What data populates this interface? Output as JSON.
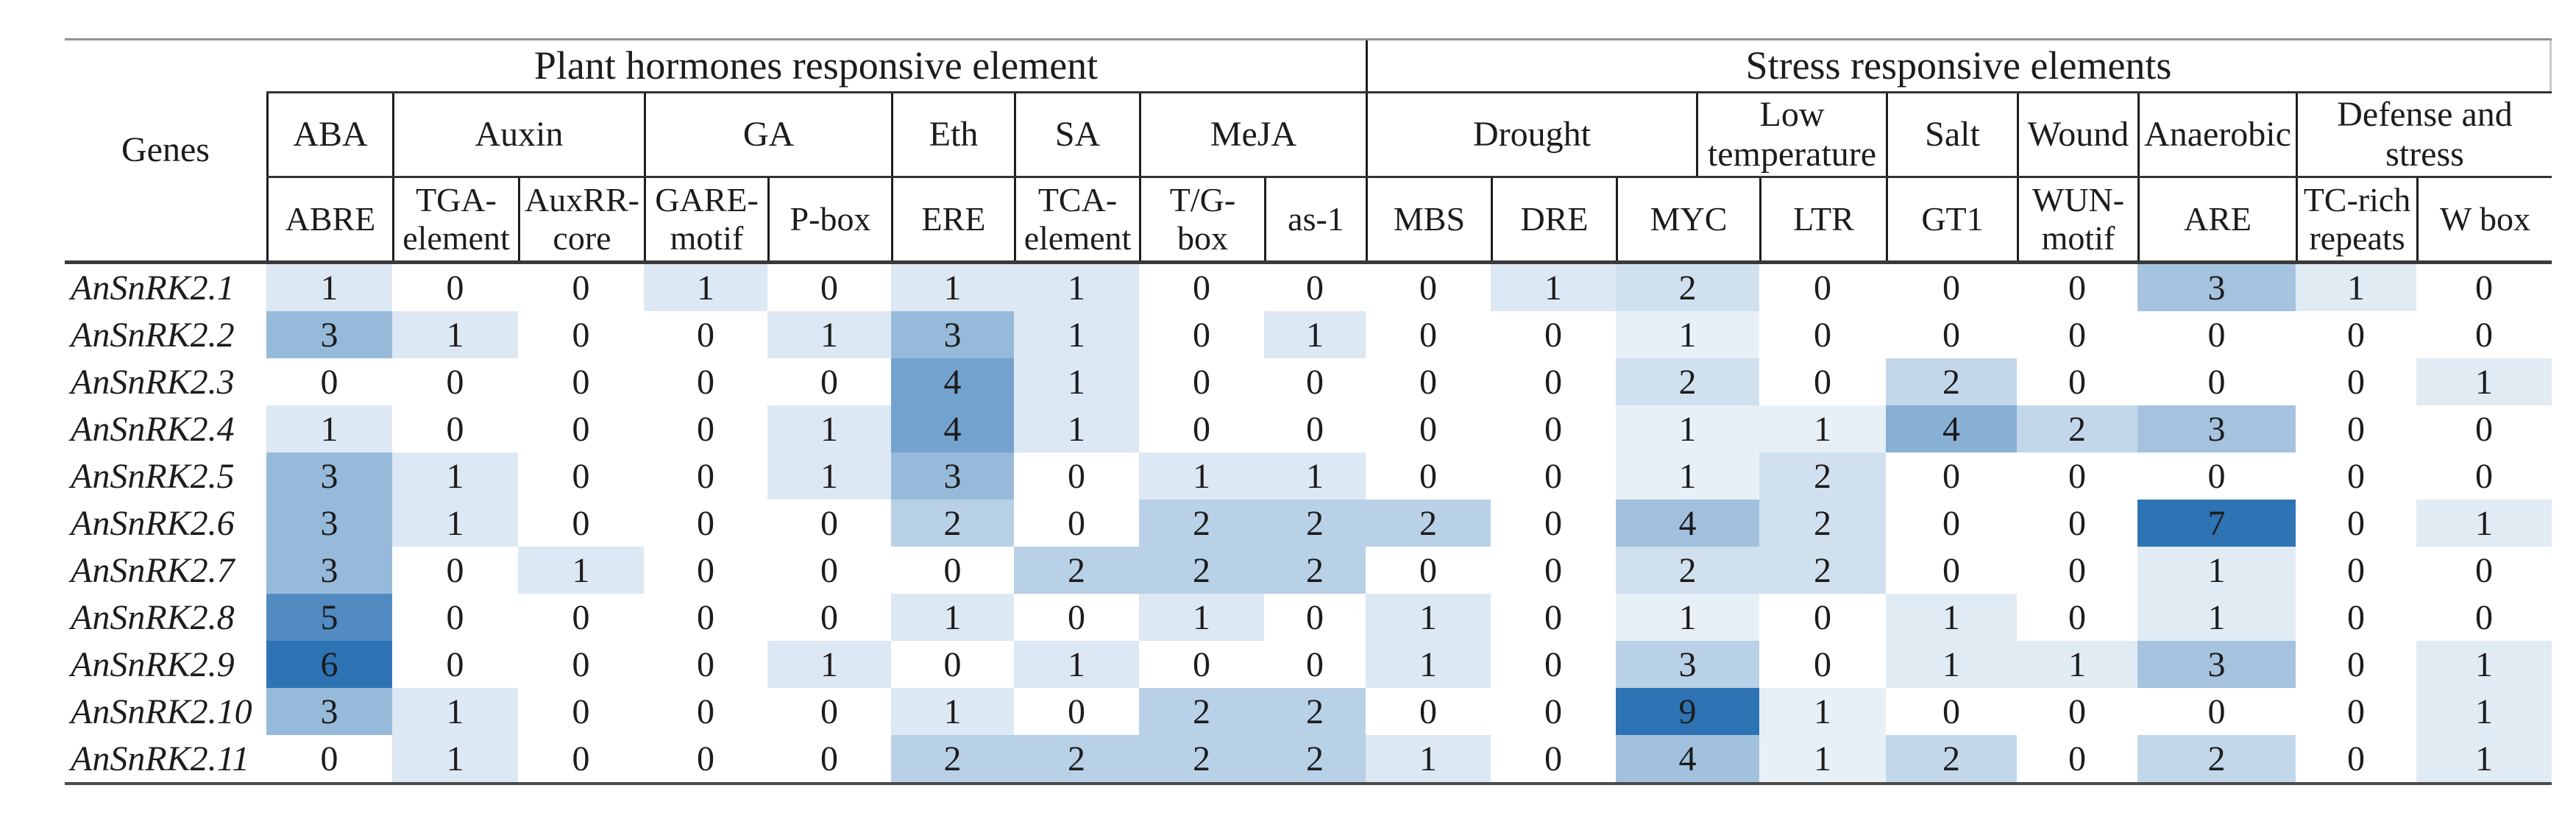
{
  "figure": {
    "type": "heatmap-table",
    "genes_header": "Genes",
    "super_groups": [
      {
        "label": "Plant hormones responsive element"
      },
      {
        "label": "Stress responsive elements"
      }
    ],
    "groups": [
      "ABA",
      "Auxin",
      "GA",
      "Eth",
      "SA",
      "MeJA",
      "Drought",
      "Low\ntemperature",
      "Salt",
      "Wound",
      "Anaerobic",
      "Defense and\nstress"
    ],
    "columns": [
      "ABRE",
      "TGA-\nelement",
      "AuxRR-\ncore",
      "GARE-\nmotif",
      "P-box",
      "ERE",
      "TCA-\nelement",
      "T/G-\nbox",
      "as-1",
      "MBS",
      "DRE",
      "MYC",
      "LTR",
      "GT1",
      "WUN-\nmotif",
      "ARE",
      "TC-rich\nrepeats",
      "W box"
    ],
    "rows": [
      {
        "gene": "AnSnRK2.1",
        "values": [
          1,
          0,
          0,
          1,
          0,
          1,
          1,
          0,
          0,
          0,
          1,
          2,
          0,
          0,
          0,
          3,
          1,
          0
        ]
      },
      {
        "gene": "AnSnRK2.2",
        "values": [
          3,
          1,
          0,
          0,
          1,
          3,
          1,
          0,
          1,
          0,
          0,
          1,
          0,
          0,
          0,
          0,
          0,
          0
        ]
      },
      {
        "gene": "AnSnRK2.3",
        "values": [
          0,
          0,
          0,
          0,
          0,
          4,
          1,
          0,
          0,
          0,
          0,
          2,
          0,
          2,
          0,
          0,
          0,
          1
        ]
      },
      {
        "gene": "AnSnRK2.4",
        "values": [
          1,
          0,
          0,
          0,
          1,
          4,
          1,
          0,
          0,
          0,
          0,
          1,
          1,
          4,
          2,
          3,
          0,
          0
        ]
      },
      {
        "gene": "AnSnRK2.5",
        "values": [
          3,
          1,
          0,
          0,
          1,
          3,
          0,
          1,
          1,
          0,
          0,
          1,
          2,
          0,
          0,
          0,
          0,
          0
        ]
      },
      {
        "gene": "AnSnRK2.6",
        "values": [
          3,
          1,
          0,
          0,
          0,
          2,
          0,
          2,
          2,
          2,
          0,
          4,
          2,
          0,
          0,
          7,
          0,
          1
        ]
      },
      {
        "gene": "AnSnRK2.7",
        "values": [
          3,
          0,
          1,
          0,
          0,
          0,
          2,
          2,
          2,
          0,
          0,
          2,
          2,
          0,
          0,
          1,
          0,
          0
        ]
      },
      {
        "gene": "AnSnRK2.8",
        "values": [
          5,
          0,
          0,
          0,
          0,
          1,
          0,
          1,
          0,
          1,
          0,
          1,
          0,
          1,
          0,
          1,
          0,
          0
        ]
      },
      {
        "gene": "AnSnRK2.9",
        "values": [
          6,
          0,
          0,
          0,
          1,
          0,
          1,
          0,
          0,
          1,
          0,
          3,
          0,
          1,
          1,
          3,
          0,
          1
        ]
      },
      {
        "gene": "AnSnRK2.10",
        "values": [
          3,
          1,
          0,
          0,
          0,
          1,
          0,
          2,
          2,
          0,
          0,
          9,
          1,
          0,
          0,
          0,
          0,
          1
        ]
      },
      {
        "gene": "AnSnRK2.11",
        "values": [
          0,
          1,
          0,
          0,
          0,
          2,
          2,
          2,
          2,
          1,
          0,
          4,
          1,
          2,
          0,
          2,
          0,
          1
        ]
      }
    ],
    "heatmap": {
      "zero_color": "#FFFFFF",
      "base_color": "#2E74B5",
      "sections": [
        {
          "first_col": 0,
          "last_col": 10,
          "max": 6
        },
        {
          "first_col": 11,
          "last_col": 12,
          "max": 9
        },
        {
          "first_col": 13,
          "last_col": 17,
          "max": 7
        }
      ]
    }
  }
}
